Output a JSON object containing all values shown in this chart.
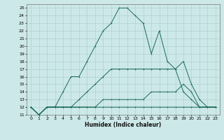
{
  "xlabel": "Humidex (Indice chaleur)",
  "background_color": "#cce8e8",
  "grid_color": "#aacccc",
  "line_color": "#1a6b5a",
  "xlim": [
    -0.5,
    23.5
  ],
  "ylim": [
    11,
    25.5
  ],
  "xticks": [
    0,
    1,
    2,
    3,
    4,
    5,
    6,
    7,
    8,
    9,
    10,
    11,
    12,
    13,
    14,
    15,
    16,
    17,
    18,
    19,
    20,
    21,
    22,
    23
  ],
  "yticks": [
    11,
    12,
    13,
    14,
    15,
    16,
    17,
    18,
    19,
    20,
    21,
    22,
    23,
    24,
    25
  ],
  "curves": [
    {
      "x": [
        0,
        1,
        2,
        3,
        4,
        5,
        6,
        7,
        8,
        9,
        10,
        11,
        12,
        13,
        14,
        15,
        16,
        17,
        18,
        19,
        20,
        21,
        22,
        23
      ],
      "y": [
        12,
        11,
        12,
        12,
        12,
        12,
        12,
        12,
        12,
        12,
        12,
        12,
        12,
        12,
        12,
        12,
        12,
        12,
        12,
        12,
        12,
        12,
        12,
        12
      ]
    },
    {
      "x": [
        0,
        1,
        2,
        3,
        4,
        5,
        6,
        7,
        8,
        9,
        10,
        11,
        12,
        13,
        14,
        15,
        16,
        17,
        18,
        19,
        20,
        21,
        22,
        23
      ],
      "y": [
        12,
        11,
        12,
        12,
        12,
        12,
        12,
        12,
        12,
        13,
        13,
        13,
        13,
        13,
        13,
        14,
        14,
        14,
        14,
        15,
        14,
        12,
        12,
        12
      ]
    },
    {
      "x": [
        0,
        1,
        2,
        3,
        4,
        5,
        6,
        7,
        8,
        9,
        10,
        11,
        12,
        13,
        14,
        15,
        16,
        17,
        18,
        19,
        20,
        21,
        22,
        23
      ],
      "y": [
        12,
        11,
        12,
        12,
        12,
        12,
        13,
        14,
        15,
        16,
        17,
        17,
        17,
        17,
        17,
        17,
        17,
        17,
        17,
        18,
        15,
        13,
        12,
        12
      ]
    },
    {
      "x": [
        0,
        1,
        2,
        3,
        4,
        5,
        6,
        7,
        8,
        9,
        10,
        11,
        12,
        13,
        14,
        15,
        16,
        17,
        18,
        19,
        20,
        21,
        22,
        23
      ],
      "y": [
        12,
        11,
        12,
        12,
        14,
        16,
        16,
        18,
        20,
        22,
        23,
        25,
        25,
        24,
        23,
        19,
        22,
        18,
        17,
        14,
        13,
        12,
        12,
        12
      ]
    }
  ]
}
